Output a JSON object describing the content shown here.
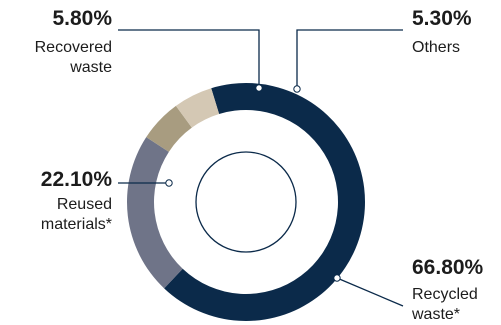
{
  "chart_data": {
    "type": "donut",
    "title": "",
    "segments": [
      {
        "label": "Recycled\nwaste*",
        "value": 66.8,
        "display": "66.80%",
        "color": "#0b2a4a"
      },
      {
        "label": "Reused\nmaterials*",
        "value": 22.1,
        "display": "22.10%",
        "color": "#6f7488"
      },
      {
        "label": "Recovered\nwaste",
        "value": 5.8,
        "display": "5.80%",
        "color": "#a89c80"
      },
      {
        "label": "Others",
        "value": 5.3,
        "display": "5.30%",
        "color": "#d4c8b4"
      }
    ],
    "legend": "none",
    "labels_placement": "callouts"
  }
}
